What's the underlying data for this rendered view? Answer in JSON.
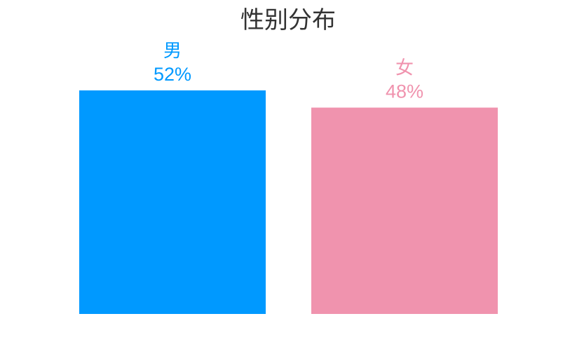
{
  "chart_data": {
    "type": "bar",
    "title": "性别分布",
    "categories": [
      "男",
      "女"
    ],
    "values": [
      52,
      48
    ],
    "value_labels": [
      "52%",
      "48%"
    ],
    "colors": [
      "#0099ff",
      "#f093ae"
    ],
    "ylim": [
      0,
      100
    ],
    "grid": false,
    "legend": "none"
  }
}
